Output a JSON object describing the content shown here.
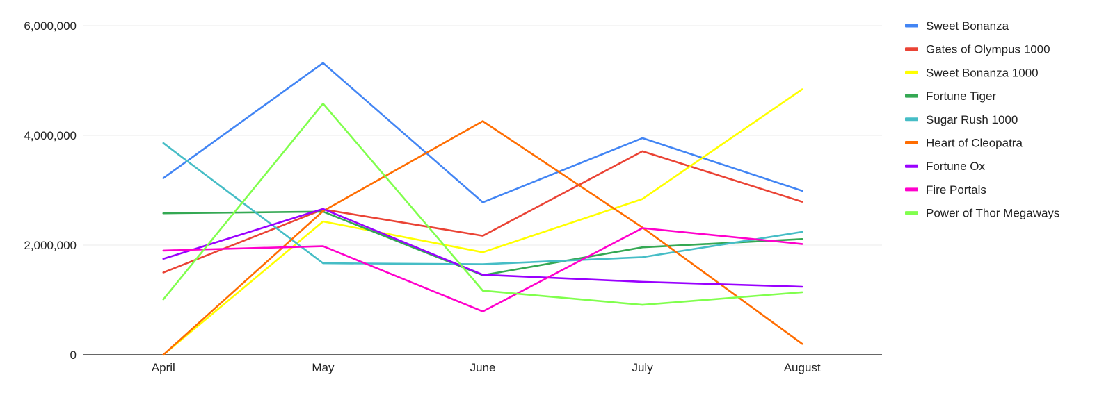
{
  "chart_data": {
    "type": "line",
    "title": "",
    "xlabel": "",
    "ylabel": "",
    "categories": [
      "April",
      "May",
      "June",
      "July",
      "August"
    ],
    "ylim": [
      0,
      6000000
    ],
    "yticks": [
      0,
      2000000,
      4000000,
      6000000
    ],
    "ytick_labels": [
      "0",
      "2,000,000",
      "4,000,000",
      "6,000,000"
    ],
    "grid": true,
    "legend_position": "right",
    "series": [
      {
        "name": "Sweet Bonanza",
        "color": "#4285f4",
        "values": [
          3220000,
          5320000,
          2780000,
          3950000,
          2990000
        ]
      },
      {
        "name": "Gates of Olympus 1000",
        "color": "#ea4335",
        "values": [
          1500000,
          2650000,
          2170000,
          3710000,
          2790000
        ]
      },
      {
        "name": "Sweet Bonanza 1000",
        "color": "#ffff00",
        "values": [
          0,
          2430000,
          1870000,
          2840000,
          4840000
        ]
      },
      {
        "name": "Fortune Tiger",
        "color": "#34a853",
        "values": [
          2580000,
          2610000,
          1450000,
          1960000,
          2110000
        ]
      },
      {
        "name": "Sugar Rush 1000",
        "color": "#46bdc6",
        "values": [
          3860000,
          1670000,
          1650000,
          1780000,
          2240000
        ]
      },
      {
        "name": "Heart of Cleopatra",
        "color": "#ff6d01",
        "values": [
          0,
          2620000,
          4260000,
          2320000,
          200000
        ]
      },
      {
        "name": "Fortune Ox",
        "color": "#9900ff",
        "values": [
          1750000,
          2660000,
          1460000,
          1330000,
          1240000
        ]
      },
      {
        "name": "Fire Portals",
        "color": "#ff00cc",
        "values": [
          1900000,
          1980000,
          790000,
          2310000,
          2020000
        ]
      },
      {
        "name": "Power of Thor Megaways",
        "color": "#80ff4d",
        "values": [
          1010000,
          4580000,
          1170000,
          910000,
          1140000
        ]
      }
    ]
  }
}
